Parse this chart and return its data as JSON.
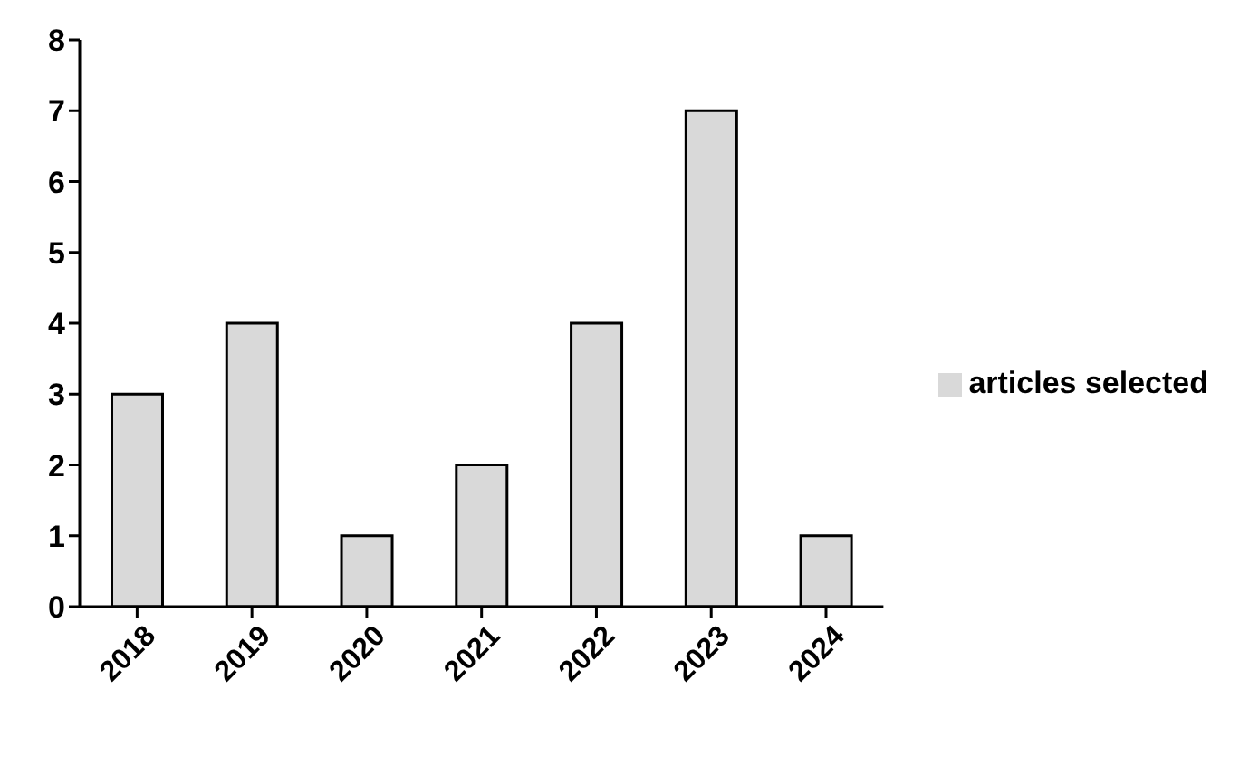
{
  "chart_data": {
    "type": "bar",
    "categories": [
      "2018",
      "2019",
      "2020",
      "2021",
      "2022",
      "2023",
      "2024"
    ],
    "series": [
      {
        "name": "articles selected",
        "color": "#d9d9d9",
        "values": [
          3,
          4,
          1,
          2,
          4,
          7,
          1
        ]
      }
    ],
    "ylim": [
      0,
      8
    ],
    "yticks": [
      0,
      1,
      2,
      3,
      4,
      5,
      6,
      7,
      8
    ],
    "grid": false,
    "legend": "right"
  }
}
